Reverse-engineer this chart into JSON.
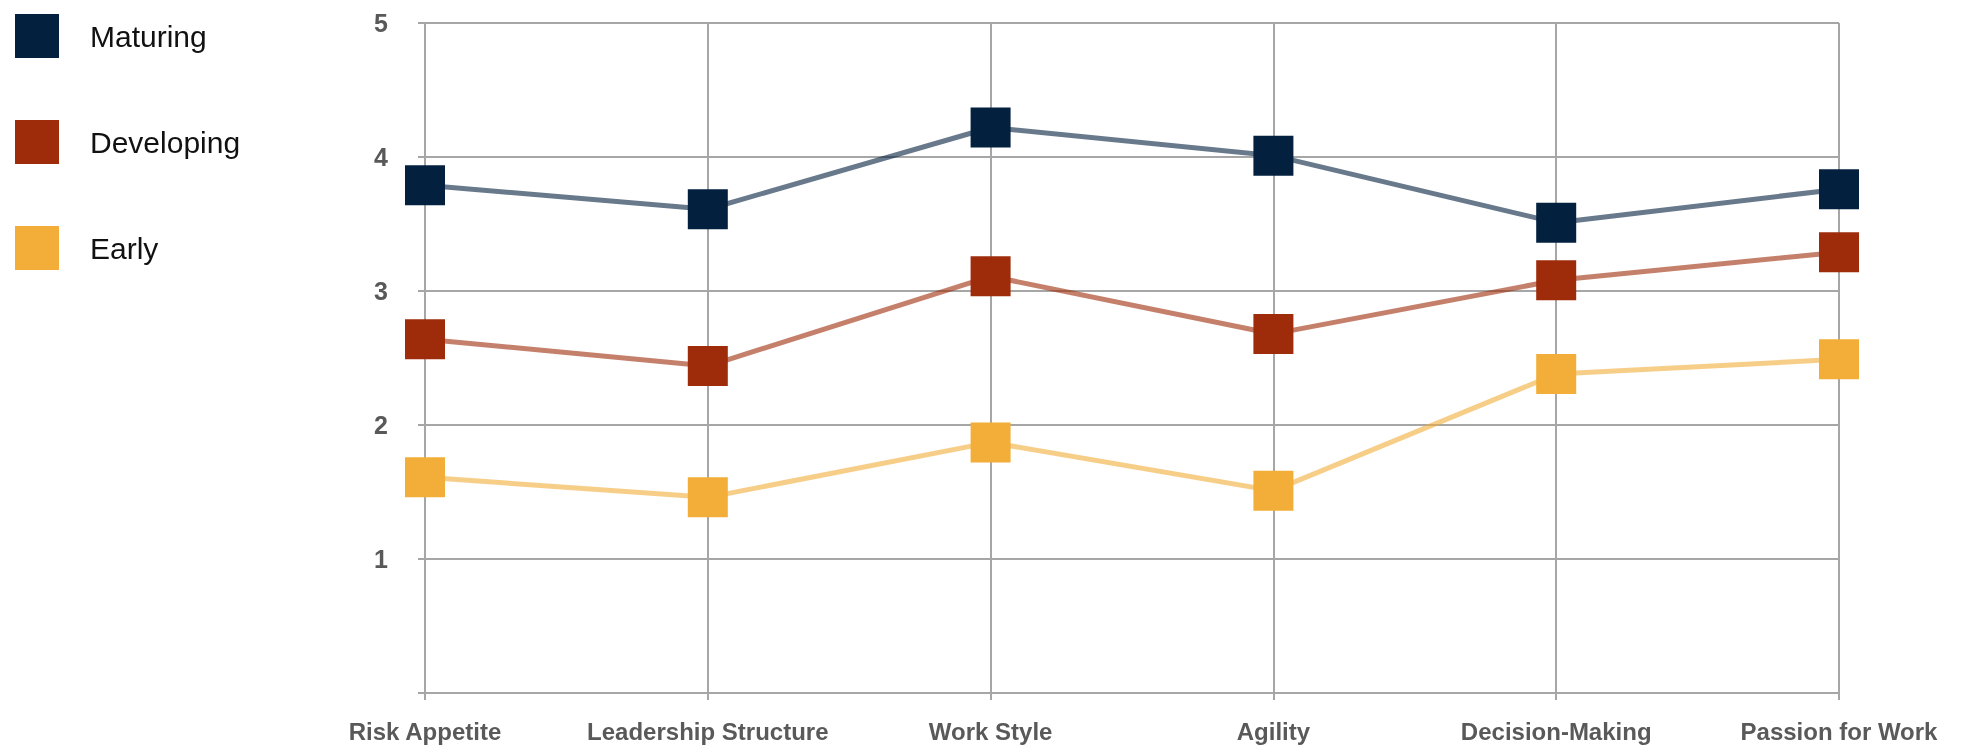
{
  "chart_data": {
    "type": "line",
    "categories": [
      "Risk Appetite",
      "Leadership Structure",
      "Work Style",
      "Agility",
      "Decision-Making",
      "Passion for Work"
    ],
    "series": [
      {
        "name": "Maturing",
        "color": "#03203f",
        "values": [
          3.79,
          3.61,
          4.22,
          4.01,
          3.51,
          3.76
        ]
      },
      {
        "name": "Developing",
        "color": "#9e2b0a",
        "values": [
          2.64,
          2.44,
          3.11,
          2.68,
          3.08,
          3.29
        ]
      },
      {
        "name": "Early",
        "color": "#f2ae38",
        "values": [
          1.61,
          1.46,
          1.87,
          1.51,
          2.38,
          2.49
        ]
      }
    ],
    "ylim": [
      0,
      5
    ],
    "yticks": [
      {
        "value": 0,
        "label": null
      },
      1,
      2,
      3,
      4,
      5
    ],
    "grid": true,
    "legend": "top left",
    "marker": "square",
    "line_style": "solid"
  }
}
